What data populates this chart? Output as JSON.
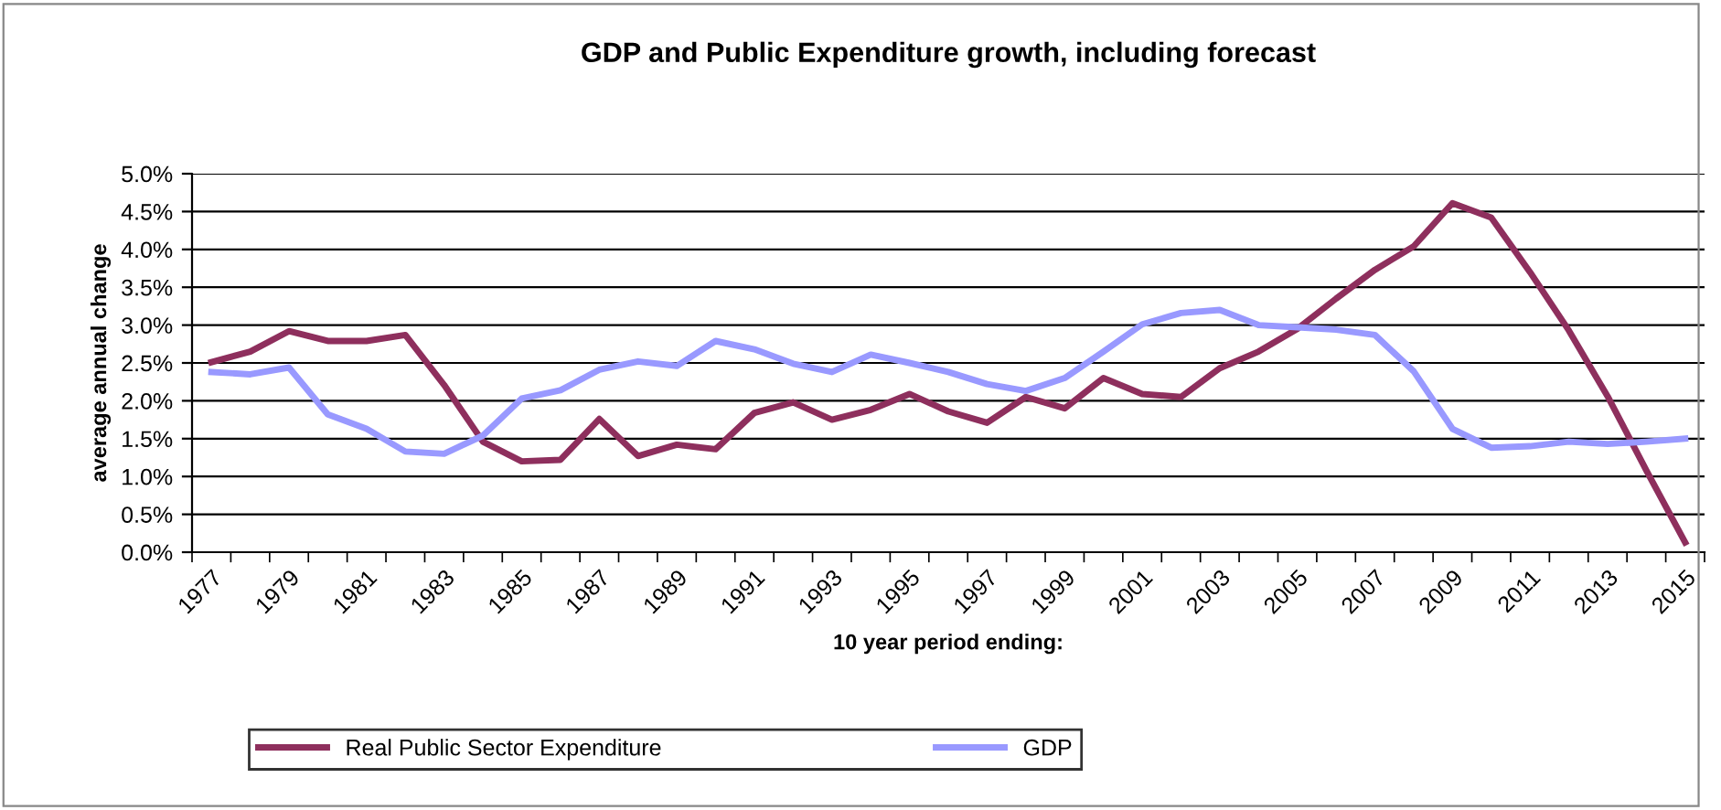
{
  "chart_data": {
    "type": "line",
    "title": "GDP and Public Expenditure growth, including forecast",
    "xlabel": "10 year period ending:",
    "ylabel": "average annual change",
    "categories": [
      "1977",
      null,
      "1979",
      null,
      "1981",
      null,
      "1983",
      null,
      "1985",
      null,
      "1987",
      null,
      "1989",
      null,
      "1991",
      null,
      "1993",
      null,
      "1995",
      null,
      "1997",
      null,
      "1999",
      null,
      "2001",
      null,
      "2003",
      null,
      "2005",
      null,
      "2007",
      null,
      "2009",
      null,
      "2011",
      null,
      "2013",
      null,
      "2015"
    ],
    "series": [
      {
        "name": "Real Public Sector Expenditure",
        "color": "#8e2f5d",
        "values": [
          2.51,
          2.65,
          2.92,
          2.79,
          2.79,
          2.87,
          2.21,
          1.46,
          1.2,
          1.22,
          1.76,
          1.27,
          1.42,
          1.36,
          1.84,
          1.98,
          1.75,
          1.88,
          2.09,
          1.86,
          1.71,
          2.05,
          1.9,
          2.3,
          2.09,
          2.05,
          2.43,
          2.65,
          2.95,
          3.35,
          3.73,
          4.04,
          4.61,
          4.42,
          3.7,
          2.93,
          2.06,
          1.08,
          0.13
        ]
      },
      {
        "name": "GDP",
        "color": "#9999ff",
        "values": [
          2.38,
          2.35,
          2.44,
          1.82,
          1.63,
          1.33,
          1.3,
          1.54,
          2.03,
          2.14,
          2.41,
          2.52,
          2.46,
          2.79,
          2.68,
          2.49,
          2.38,
          2.61,
          2.5,
          2.38,
          2.22,
          2.13,
          2.3,
          2.65,
          3.01,
          3.16,
          3.2,
          3.0,
          2.97,
          2.94,
          2.87,
          2.39,
          1.63,
          1.38,
          1.4,
          1.46,
          1.43,
          1.46,
          1.5
        ]
      }
    ],
    "ylim": [
      0,
      5
    ],
    "yticks": [
      {
        "value": 0,
        "label": "0.0%"
      },
      {
        "value": 0.5,
        "label": "0.5%"
      },
      {
        "value": 1,
        "label": "1.0%"
      },
      {
        "value": 1.5,
        "label": "1.5%"
      },
      {
        "value": 2,
        "label": "2.0%"
      },
      {
        "value": 2.5,
        "label": "2.5%"
      },
      {
        "value": 3,
        "label": "3.0%"
      },
      {
        "value": 3.5,
        "label": "3.5%"
      },
      {
        "value": 4,
        "label": "4.0%"
      },
      {
        "value": 4.5,
        "label": "4.5%"
      },
      {
        "value": 5,
        "label": "5.0%"
      }
    ],
    "grid": "y",
    "legend": "bottom",
    "marker": "none",
    "line_style": "solid"
  }
}
